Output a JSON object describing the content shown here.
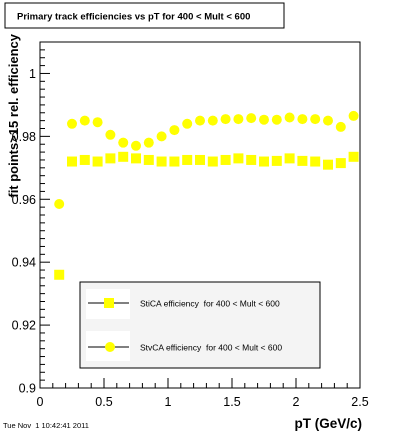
{
  "chart_data": {
    "type": "scatter",
    "title": "Primary track efficiencies vs pT for 400 < Mult < 600",
    "xlabel": "pT (GeV/c)",
    "ylabel": "fit points>15 rel. efficiency",
    "xlim": [
      0,
      2.5
    ],
    "ylim": [
      0.9,
      1.01
    ],
    "x_ticks": [
      "0",
      "0.5",
      "1",
      "1.5",
      "2",
      "2.5"
    ],
    "y_ticks": [
      "0.9",
      "0.92",
      "0.94",
      "0.96",
      "0.98",
      "1"
    ],
    "grid": false,
    "legend_position": "bottom-center",
    "marker_color": "#ffff00",
    "series": [
      {
        "name": "StiCA efficiency  for 400 < Mult < 600",
        "marker": "square",
        "x": [
          0.15,
          0.25,
          0.35,
          0.45,
          0.55,
          0.65,
          0.75,
          0.85,
          0.95,
          1.05,
          1.15,
          1.25,
          1.35,
          1.45,
          1.55,
          1.65,
          1.75,
          1.85,
          1.95,
          2.05,
          2.15,
          2.25,
          2.35,
          2.45
        ],
        "y": [
          0.936,
          0.972,
          0.9725,
          0.972,
          0.973,
          0.9735,
          0.973,
          0.9725,
          0.972,
          0.972,
          0.9725,
          0.9725,
          0.972,
          0.9725,
          0.973,
          0.9725,
          0.972,
          0.9722,
          0.973,
          0.9722,
          0.972,
          0.971,
          0.9715,
          0.9735
        ]
      },
      {
        "name": "StvCA efficiency  for 400 < Mult < 600",
        "marker": "circle",
        "x": [
          0.15,
          0.25,
          0.35,
          0.45,
          0.55,
          0.65,
          0.75,
          0.85,
          0.95,
          1.05,
          1.15,
          1.25,
          1.35,
          1.45,
          1.55,
          1.65,
          1.75,
          1.85,
          1.95,
          2.05,
          2.15,
          2.25,
          2.35,
          2.45
        ],
        "y": [
          0.9585,
          0.984,
          0.985,
          0.9845,
          0.9805,
          0.978,
          0.977,
          0.978,
          0.98,
          0.982,
          0.984,
          0.985,
          0.985,
          0.9855,
          0.9855,
          0.9858,
          0.9853,
          0.9853,
          0.986,
          0.9855,
          0.9855,
          0.985,
          0.983,
          0.9865
        ]
      }
    ]
  },
  "footer": {
    "timestamp": "Tue Nov  1 10:42:41 2011"
  }
}
